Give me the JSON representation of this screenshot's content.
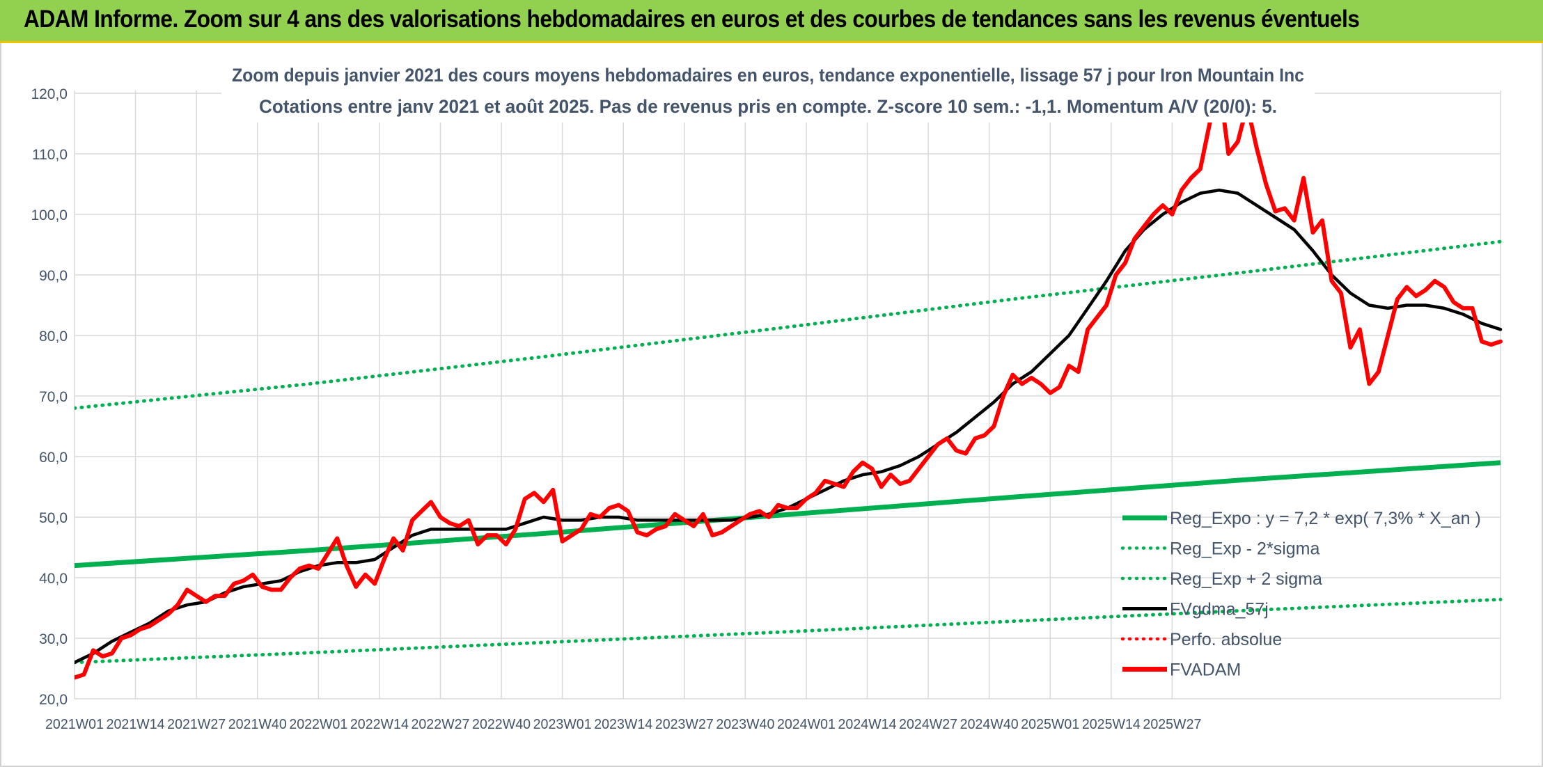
{
  "header": {
    "title": "ADAM Informe. Zoom sur 4 ans des valorisations hebdomadaires en euros et des courbes de tendances sans les revenus éventuels"
  },
  "colors": {
    "banner": "#92d050",
    "banner_border": "#f2c200",
    "price": "#ff0000",
    "moving_average": "#000000",
    "regression": "#00b050",
    "grid": "#d9d9d9",
    "text": "#44546a"
  },
  "chart_data": {
    "type": "line",
    "title": "Zoom depuis janvier 2021 des cours moyens hebdomadaires en euros, tendance exponentielle, lissage 57 j pour Iron Mountain Inc",
    "subtitle": "Cotations entre janv 2021 et août 2025. Pas de revenus pris en compte. Z-score 10 sem.: -1,1. Momentum A/V (20/0): 5.",
    "xlabel": "",
    "ylabel": "",
    "ylim": [
      20,
      120
    ],
    "yticks": [
      "20,0",
      "30,0",
      "40,0",
      "50,0",
      "60,0",
      "70,0",
      "80,0",
      "90,0",
      "100,0",
      "110,0",
      "120,0"
    ],
    "x_tick_labels": [
      "2021W01",
      "2021W14",
      "2021W27",
      "2021W40",
      "2022W01",
      "2022W14",
      "2022W27",
      "2022W40",
      "2023W01",
      "2023W14",
      "2023W27",
      "2023W40",
      "2024W01",
      "2024W14",
      "2024W27",
      "2024W40",
      "2025W01",
      "2025W14",
      "2025W27"
    ],
    "grid": true,
    "legend_position": "bottom-right",
    "legend": [
      {
        "label": "Reg_Expo : y = 7,2 * exp( 7,3% *  X_an )",
        "style": "solid",
        "color": "#00b050"
      },
      {
        "label": "Reg_Exp - 2*sigma",
        "style": "dotted",
        "color": "#00b050"
      },
      {
        "label": "Reg_Exp + 2 sigma",
        "style": "dotted",
        "color": "#00b050"
      },
      {
        "label": "FVgdma_57j",
        "style": "solid",
        "color": "#000000"
      },
      {
        "label": "Perfo. absolue",
        "style": "dotted",
        "color": "#ff0000"
      },
      {
        "label": "FVADAM",
        "style": "solid",
        "color": "#ff0000"
      }
    ],
    "series": [
      {
        "name": "FVADAM",
        "points": [
          [
            0,
            23.5
          ],
          [
            2,
            24
          ],
          [
            4,
            28
          ],
          [
            6,
            27
          ],
          [
            8,
            27.5
          ],
          [
            10,
            30
          ],
          [
            12,
            30.5
          ],
          [
            14,
            31.5
          ],
          [
            16,
            32
          ],
          [
            18,
            33
          ],
          [
            20,
            34
          ],
          [
            22,
            35.5
          ],
          [
            24,
            38
          ],
          [
            26,
            37
          ],
          [
            28,
            36
          ],
          [
            30,
            37
          ],
          [
            32,
            37
          ],
          [
            34,
            39
          ],
          [
            36,
            39.5
          ],
          [
            38,
            40.5
          ],
          [
            40,
            38.5
          ],
          [
            42,
            38
          ],
          [
            44,
            38
          ],
          [
            46,
            40
          ],
          [
            48,
            41.5
          ],
          [
            50,
            42
          ],
          [
            52,
            41.5
          ],
          [
            54,
            44
          ],
          [
            56,
            46.5
          ],
          [
            58,
            42
          ],
          [
            60,
            38.5
          ],
          [
            62,
            40.5
          ],
          [
            64,
            39
          ],
          [
            66,
            43
          ],
          [
            68,
            46.5
          ],
          [
            70,
            44.5
          ],
          [
            72,
            49.5
          ],
          [
            74,
            51
          ],
          [
            76,
            52.5
          ],
          [
            78,
            50
          ],
          [
            80,
            49
          ],
          [
            82,
            48.5
          ],
          [
            84,
            49.5
          ],
          [
            86,
            45.5
          ],
          [
            88,
            47
          ],
          [
            90,
            47
          ],
          [
            92,
            45.5
          ],
          [
            94,
            48
          ],
          [
            96,
            53
          ],
          [
            98,
            54
          ],
          [
            100,
            52.5
          ],
          [
            102,
            54.5
          ],
          [
            104,
            46
          ],
          [
            106,
            47
          ],
          [
            108,
            48
          ],
          [
            110,
            50.5
          ],
          [
            112,
            50
          ],
          [
            114,
            51.5
          ],
          [
            116,
            52
          ],
          [
            118,
            51
          ],
          [
            120,
            47.5
          ],
          [
            122,
            47
          ],
          [
            124,
            48
          ],
          [
            126,
            48.5
          ],
          [
            128,
            50.5
          ],
          [
            130,
            49.5
          ],
          [
            132,
            48.5
          ],
          [
            134,
            50.5
          ],
          [
            136,
            47
          ],
          [
            138,
            47.5
          ],
          [
            140,
            48.5
          ],
          [
            142,
            49.5
          ],
          [
            144,
            50.5
          ],
          [
            146,
            51
          ],
          [
            148,
            50
          ],
          [
            150,
            52
          ],
          [
            152,
            51.5
          ],
          [
            154,
            51.5
          ],
          [
            156,
            53
          ],
          [
            158,
            54
          ],
          [
            160,
            56
          ],
          [
            162,
            55.5
          ],
          [
            164,
            55
          ],
          [
            166,
            57.5
          ],
          [
            168,
            59
          ],
          [
            170,
            58
          ],
          [
            172,
            55
          ],
          [
            174,
            57
          ],
          [
            176,
            55.5
          ],
          [
            178,
            56
          ],
          [
            180,
            58
          ],
          [
            182,
            60
          ],
          [
            184,
            62
          ],
          [
            186,
            63
          ],
          [
            188,
            61
          ],
          [
            190,
            60.5
          ],
          [
            192,
            63
          ],
          [
            194,
            63.5
          ],
          [
            196,
            65
          ],
          [
            198,
            70
          ],
          [
            200,
            73.5
          ],
          [
            202,
            72
          ],
          [
            204,
            73
          ],
          [
            206,
            72
          ],
          [
            208,
            70.5
          ],
          [
            210,
            71.5
          ],
          [
            212,
            75
          ],
          [
            214,
            74
          ],
          [
            216,
            81
          ],
          [
            218,
            83
          ],
          [
            220,
            85
          ],
          [
            222,
            90
          ],
          [
            224,
            92
          ],
          [
            226,
            96
          ],
          [
            228,
            98
          ],
          [
            230,
            100
          ],
          [
            232,
            101.5
          ],
          [
            234,
            100
          ],
          [
            236,
            104
          ],
          [
            238,
            106
          ],
          [
            240,
            107.5
          ],
          [
            242,
            115
          ],
          [
            244,
            122
          ],
          [
            246,
            110
          ],
          [
            248,
            112
          ],
          [
            250,
            118
          ],
          [
            252,
            111
          ],
          [
            254,
            105
          ],
          [
            256,
            100.5
          ],
          [
            258,
            101
          ],
          [
            260,
            99
          ],
          [
            262,
            106
          ],
          [
            264,
            97
          ],
          [
            266,
            99
          ],
          [
            268,
            89
          ],
          [
            270,
            87
          ],
          [
            272,
            78
          ],
          [
            274,
            81
          ],
          [
            276,
            72
          ],
          [
            278,
            74
          ],
          [
            280,
            80
          ],
          [
            282,
            86
          ],
          [
            284,
            88
          ],
          [
            286,
            86.5
          ],
          [
            288,
            87.5
          ],
          [
            290,
            89
          ],
          [
            292,
            88
          ],
          [
            294,
            85.5
          ],
          [
            296,
            84.5
          ],
          [
            298,
            84.5
          ],
          [
            300,
            79
          ],
          [
            302,
            78.5
          ],
          [
            304,
            79
          ]
        ]
      },
      {
        "name": "FVgdma_57j",
        "points": [
          [
            0,
            26
          ],
          [
            4,
            27.5
          ],
          [
            8,
            29.5
          ],
          [
            12,
            31
          ],
          [
            16,
            32.5
          ],
          [
            20,
            34.5
          ],
          [
            24,
            35.5
          ],
          [
            28,
            36
          ],
          [
            32,
            37.5
          ],
          [
            36,
            38.5
          ],
          [
            40,
            39
          ],
          [
            44,
            39.5
          ],
          [
            48,
            41
          ],
          [
            52,
            42
          ],
          [
            56,
            42.5
          ],
          [
            60,
            42.5
          ],
          [
            64,
            43
          ],
          [
            68,
            45
          ],
          [
            72,
            47
          ],
          [
            76,
            48
          ],
          [
            80,
            48
          ],
          [
            84,
            48
          ],
          [
            88,
            48
          ],
          [
            92,
            48
          ],
          [
            96,
            49
          ],
          [
            100,
            50
          ],
          [
            104,
            49.5
          ],
          [
            108,
            49.5
          ],
          [
            112,
            50
          ],
          [
            116,
            50
          ],
          [
            120,
            49.5
          ],
          [
            124,
            49.5
          ],
          [
            128,
            49.5
          ],
          [
            132,
            49.5
          ],
          [
            136,
            49.5
          ],
          [
            140,
            49.5
          ],
          [
            144,
            50
          ],
          [
            148,
            50.5
          ],
          [
            152,
            51.5
          ],
          [
            156,
            53
          ],
          [
            160,
            54.5
          ],
          [
            164,
            56
          ],
          [
            168,
            57
          ],
          [
            172,
            57.5
          ],
          [
            176,
            58.5
          ],
          [
            180,
            60
          ],
          [
            184,
            62
          ],
          [
            188,
            64
          ],
          [
            192,
            66.5
          ],
          [
            196,
            69
          ],
          [
            200,
            72
          ],
          [
            204,
            74
          ],
          [
            208,
            77
          ],
          [
            212,
            80
          ],
          [
            216,
            84.5
          ],
          [
            220,
            89
          ],
          [
            224,
            94
          ],
          [
            228,
            97.5
          ],
          [
            232,
            100
          ],
          [
            236,
            102
          ],
          [
            240,
            103.5
          ],
          [
            244,
            104
          ],
          [
            248,
            103.5
          ],
          [
            252,
            101.5
          ],
          [
            256,
            99.5
          ],
          [
            260,
            97.5
          ],
          [
            264,
            94
          ],
          [
            268,
            90
          ],
          [
            272,
            87
          ],
          [
            276,
            85
          ],
          [
            280,
            84.5
          ],
          [
            284,
            85
          ],
          [
            288,
            85
          ],
          [
            292,
            84.5
          ],
          [
            296,
            83.5
          ],
          [
            300,
            82
          ],
          [
            304,
            81
          ]
        ]
      },
      {
        "name": "Reg_Expo",
        "formula": "y = 7,2 * exp( 7,3% *  X_an )",
        "points": [
          [
            0,
            42
          ],
          [
            50,
            44.5
          ],
          [
            100,
            47.3
          ],
          [
            150,
            50.3
          ],
          [
            200,
            53.3
          ],
          [
            250,
            56.2
          ],
          [
            304,
            59
          ]
        ]
      },
      {
        "name": "Reg_Exp - 2*sigma",
        "points": [
          [
            0,
            26
          ],
          [
            50,
            27.6
          ],
          [
            100,
            29.3
          ],
          [
            150,
            31
          ],
          [
            200,
            32.8
          ],
          [
            250,
            34.6
          ],
          [
            304,
            36.4
          ]
        ]
      },
      {
        "name": "Reg_Exp + 2 sigma",
        "points": [
          [
            0,
            68
          ],
          [
            50,
            72
          ],
          [
            100,
            76.5
          ],
          [
            150,
            81.2
          ],
          [
            200,
            86
          ],
          [
            250,
            90.5
          ],
          [
            304,
            95.5
          ]
        ]
      },
      {
        "name": "Perfo. absolue",
        "points": []
      }
    ]
  }
}
